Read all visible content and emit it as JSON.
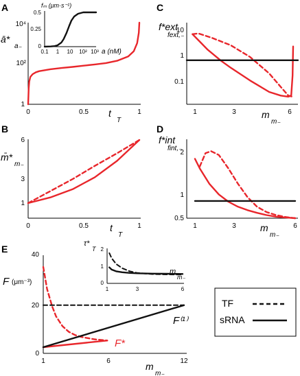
{
  "panels": {
    "A": {
      "letter": "A",
      "ylabel_main": "ā*",
      "ylabel_sub": "a₋",
      "xlabel_main": "t",
      "xlabel_sub": "T",
      "xticks": [
        "0",
        "0.5",
        "1"
      ],
      "yticks": [
        "1",
        "10²",
        "10⁴"
      ],
      "inset": {
        "ylabel": "fₘ (μm·s⁻¹)",
        "xlabel": "a (nM)",
        "xticks": [
          "0.1",
          "1",
          "10",
          "10²",
          "10³"
        ],
        "yticks": [
          "0",
          "0.25",
          "0.5"
        ]
      }
    },
    "B": {
      "letter": "B",
      "ylabel_main": "m̄*",
      "ylabel_sub": "m₋",
      "xlabel_main": "t",
      "xlabel_sub": "T",
      "xticks": [
        "0",
        "0.5",
        "1"
      ],
      "yticks": [
        "1",
        "3",
        "6"
      ]
    },
    "C": {
      "letter": "C",
      "ylabel_main": "f*ext",
      "ylabel_sub": "fext,₋",
      "xlabel_main": "m",
      "xlabel_sub": "m₋",
      "xticks": [
        "1",
        "3",
        "6"
      ],
      "yticks": [
        "0.1",
        "1",
        "10"
      ]
    },
    "D": {
      "letter": "D",
      "ylabel_main": "f*int",
      "ylabel_sub": "fint,₋",
      "xlabel_main": "m",
      "xlabel_sub": "m₋",
      "xticks": [
        "1",
        "3",
        "6"
      ],
      "yticks": [
        "0.5",
        "1",
        "2"
      ]
    },
    "E": {
      "letter": "E",
      "ylabel": "F",
      "yunit": "(μm⁻³)",
      "xlabel_main": "m",
      "xlabel_sub": "m₋",
      "xticks": [
        "1",
        "6",
        "12"
      ],
      "yticks": [
        "0",
        "20",
        "40"
      ],
      "label_fstar": "F*",
      "label_f1": "F⁽¹⁾",
      "inset": {
        "ylabel_main": "τ*",
        "ylabel_sub": "T",
        "xlabel_main": "m",
        "xlabel_sub": "m₋",
        "xticks": [
          "1",
          "3",
          "6"
        ],
        "yticks": [
          "0",
          "1",
          "2"
        ]
      }
    }
  },
  "legend": {
    "tf_label": "TF",
    "srna_label": "sRNA"
  },
  "colors": {
    "red": "#e8262b",
    "black": "#111111"
  },
  "chart_data": [
    {
      "panel": "A",
      "type": "line",
      "ylog": true,
      "xlim": [
        0,
        1
      ],
      "ylim": [
        1,
        10000
      ],
      "series": [
        {
          "style": "red-solid",
          "x": [
            0,
            0.005,
            0.01,
            0.02,
            0.04,
            0.07,
            0.1,
            0.2,
            0.3,
            0.4,
            0.5,
            0.6,
            0.7,
            0.8,
            0.9,
            0.95,
            0.98,
            0.995,
            1.0
          ],
          "y": [
            1,
            6,
            13,
            22,
            30,
            37,
            42,
            52,
            60,
            68,
            78,
            90,
            105,
            135,
            220,
            400,
            1000,
            3200,
            10000
          ]
        }
      ]
    },
    {
      "panel": "A-inset",
      "type": "line",
      "xlog": true,
      "xlim": [
        0.1,
        1000
      ],
      "ylim": [
        0,
        0.5
      ],
      "series": [
        {
          "style": "black-solid",
          "x": [
            0.1,
            0.3,
            0.6,
            1,
            2,
            3,
            5,
            8,
            12,
            20,
            40,
            100,
            300,
            1000
          ],
          "y": [
            0.0,
            0.003,
            0.008,
            0.02,
            0.06,
            0.11,
            0.2,
            0.3,
            0.38,
            0.44,
            0.48,
            0.5,
            0.5,
            0.5
          ]
        }
      ]
    },
    {
      "panel": "B",
      "type": "line",
      "xlim": [
        0,
        1
      ],
      "ylim": [
        1,
        6
      ],
      "series": [
        {
          "style": "red-dashed",
          "x": [
            0,
            0.2,
            0.4,
            0.6,
            0.8,
            1
          ],
          "y": [
            1,
            1.95,
            2.9,
            3.95,
            4.95,
            6
          ]
        },
        {
          "style": "red-solid",
          "x": [
            0,
            0.2,
            0.4,
            0.6,
            0.8,
            1
          ],
          "y": [
            1,
            1.45,
            2.1,
            3.05,
            4.35,
            6
          ]
        }
      ]
    },
    {
      "panel": "C",
      "type": "line",
      "ylog": true,
      "xlim": [
        0.7,
        6.5
      ],
      "ylim": [
        0.03,
        20
      ],
      "series": [
        {
          "style": "red-dashed",
          "x": [
            1,
            1.3,
            2,
            3,
            4,
            5,
            5.6,
            6,
            6.2,
            6.25
          ],
          "y": [
            8,
            8.5,
            6,
            3.3,
            1.3,
            0.35,
            0.12,
            0.06,
            0.055,
            0.06
          ]
        },
        {
          "style": "red-solid",
          "x": [
            1,
            1.3,
            1.8,
            2.5,
            3,
            4,
            5,
            5.6,
            6,
            6.15,
            6.22,
            6.25
          ],
          "y": [
            8,
            5,
            2.3,
            0.95,
            0.55,
            0.2,
            0.08,
            0.06,
            0.055,
            0.06,
            0.3,
            3
          ]
        },
        {
          "style": "black-solid",
          "x": [
            0.7,
            6.5
          ],
          "y": [
            1,
            1
          ]
        }
      ]
    },
    {
      "panel": "D",
      "type": "line",
      "xlim": [
        0.75,
        6
      ],
      "ylim": [
        0.5,
        2.4
      ],
      "series": [
        {
          "style": "red-dashed",
          "x": [
            1,
            1.3,
            1.6,
            2,
            2.5,
            3,
            3.5,
            4,
            4.5,
            5,
            5.5,
            6
          ],
          "y": [
            1.85,
            2.2,
            2.25,
            2.15,
            1.8,
            1.4,
            1.05,
            0.8,
            0.66,
            0.58,
            0.53,
            0.5
          ]
        },
        {
          "style": "red-solid",
          "x": [
            0.75,
            1,
            1.5,
            2,
            2.5,
            3,
            3.5,
            4,
            4.5,
            5,
            5.5,
            6
          ],
          "y": [
            2.05,
            1.8,
            1.4,
            1.12,
            0.93,
            0.8,
            0.71,
            0.64,
            0.58,
            0.54,
            0.52,
            0.5
          ]
        },
        {
          "style": "black-solid",
          "x": [
            0.75,
            6
          ],
          "y": [
            0.95,
            0.95
          ]
        }
      ]
    },
    {
      "panel": "E",
      "type": "line",
      "xlim": [
        1,
        12
      ],
      "ylim": [
        0,
        40
      ],
      "series": [
        {
          "style": "red-dashed",
          "x": [
            1,
            1.3,
            1.7,
            2,
            2.5,
            3,
            3.5,
            4,
            5,
            6
          ],
          "y": [
            35,
            26,
            19,
            15,
            11,
            8.7,
            7.4,
            6.6,
            5.7,
            5.2
          ]
        },
        {
          "style": "red-solid",
          "x": [
            1,
            6
          ],
          "y": [
            2.5,
            5.2
          ]
        },
        {
          "style": "black-dashed",
          "x": [
            1,
            12
          ],
          "y": [
            19.5,
            19.5
          ]
        },
        {
          "style": "black-solid",
          "x": [
            1,
            12
          ],
          "y": [
            2.5,
            19.5
          ]
        }
      ]
    },
    {
      "panel": "E-inset",
      "type": "line",
      "xlim": [
        1,
        6
      ],
      "ylim": [
        0,
        2
      ],
      "series": [
        {
          "style": "black-dashed",
          "x": [
            1.15,
            1.3,
            1.6,
            2,
            2.5,
            3,
            4,
            5,
            6
          ],
          "y": [
            1.8,
            1.5,
            1.15,
            0.9,
            0.72,
            0.62,
            0.55,
            0.53,
            0.52
          ]
        },
        {
          "style": "black-solid",
          "x": [
            1.15,
            1.3,
            1.6,
            2,
            2.5,
            3,
            4,
            5,
            6
          ],
          "y": [
            0.95,
            0.82,
            0.72,
            0.66,
            0.62,
            0.6,
            0.58,
            0.57,
            0.56
          ]
        }
      ]
    }
  ]
}
